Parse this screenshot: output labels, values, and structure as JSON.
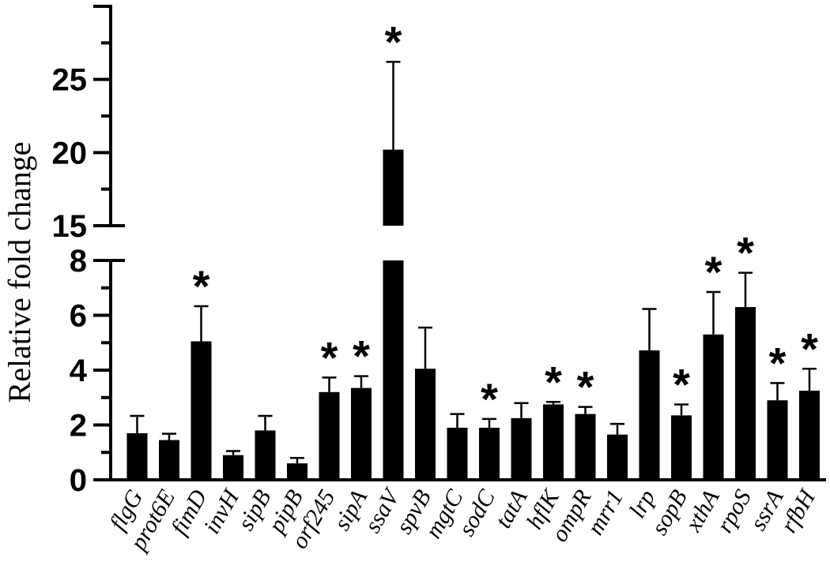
{
  "chart_data": {
    "type": "bar",
    "title": "",
    "xlabel": "",
    "ylabel": "Relative fold change",
    "broken_axis": true,
    "lower_segment": {
      "ylim": [
        0,
        8
      ],
      "ticks": [
        0,
        2,
        4,
        6,
        8
      ]
    },
    "upper_segment": {
      "ylim": [
        15,
        30
      ],
      "ticks": [
        15,
        20,
        25
      ]
    },
    "categories": [
      "flgG",
      "prot6E",
      "fimD",
      "invH",
      "sipB",
      "pipB",
      "orf245",
      "sipA",
      "ssaV",
      "spvB",
      "mgtC",
      "sodC",
      "tatA",
      "hflK",
      "ompR",
      "mrr1",
      "lrp",
      "sopB",
      "xthA",
      "rpoS",
      "ssrA",
      "rfbH"
    ],
    "values": [
      1.7,
      1.45,
      5.05,
      0.9,
      1.8,
      0.6,
      3.2,
      3.35,
      20.2,
      4.05,
      1.9,
      1.9,
      2.25,
      2.75,
      2.4,
      1.65,
      4.72,
      2.35,
      5.3,
      6.3,
      2.9,
      3.25
    ],
    "error_upper": [
      2.33,
      1.68,
      6.33,
      1.05,
      2.33,
      0.8,
      3.73,
      3.78,
      26.2,
      5.55,
      2.4,
      2.22,
      2.8,
      2.84,
      2.66,
      2.04,
      6.23,
      2.75,
      6.85,
      7.55,
      3.53,
      4.05
    ],
    "significant": [
      false,
      false,
      true,
      false,
      false,
      false,
      true,
      true,
      true,
      false,
      false,
      true,
      false,
      true,
      true,
      false,
      false,
      true,
      true,
      true,
      true,
      true
    ],
    "significance_marker": "*",
    "bar_color": "#000000"
  }
}
